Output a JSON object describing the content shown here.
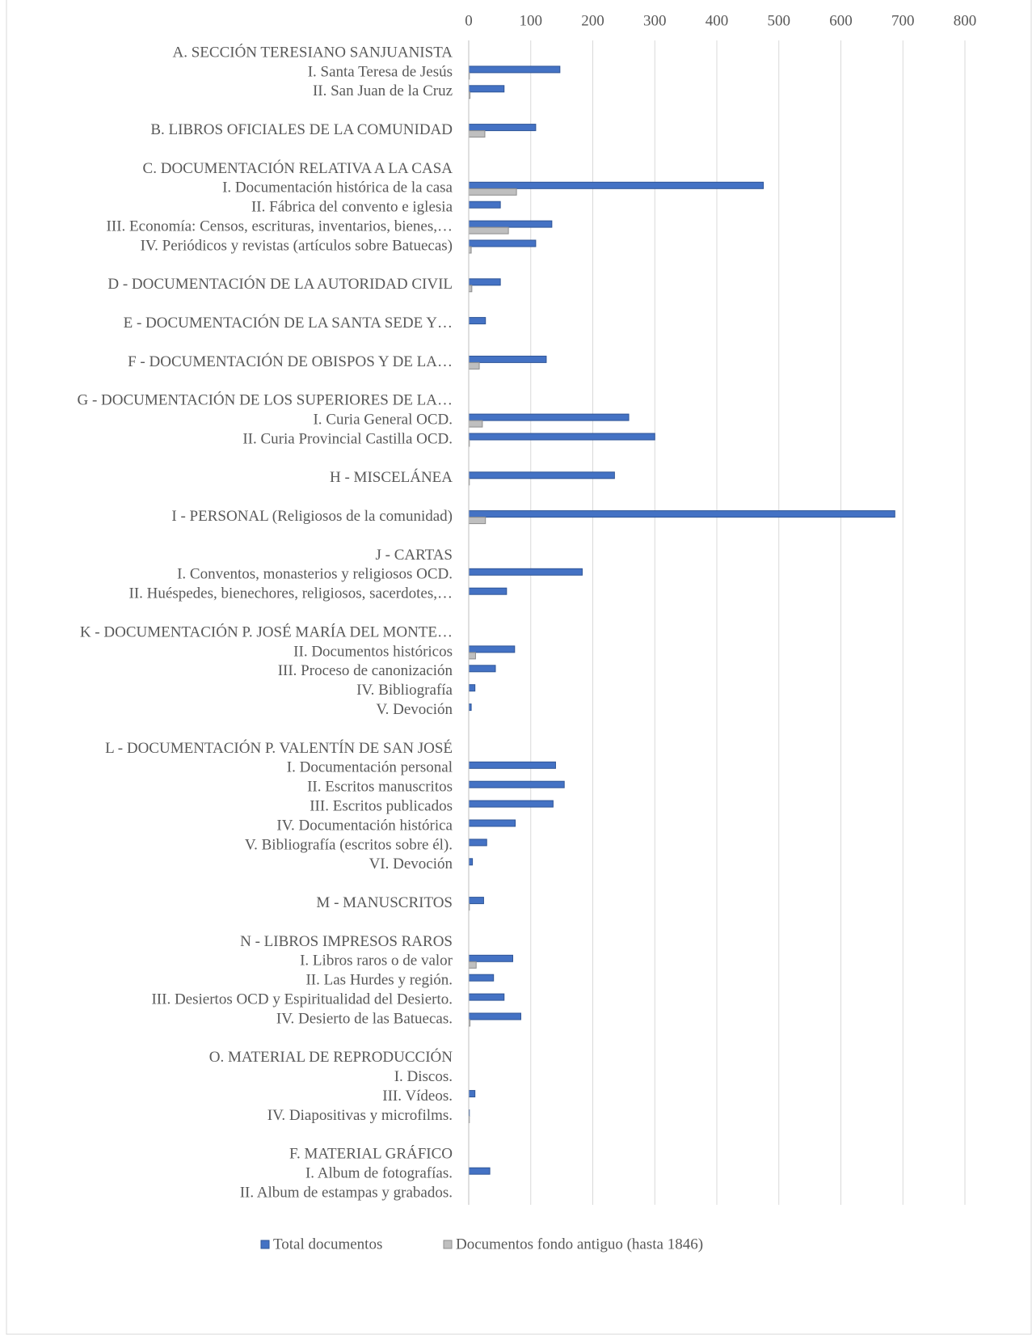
{
  "chart_data": {
    "type": "barh",
    "categories": [
      "A. SECCIÓN TERESIANO SANJUANISTA",
      "I. Santa Teresa de Jesús",
      "II. San Juan de la Cruz",
      null,
      "B. LIBROS OFICIALES DE LA COMUNIDAD",
      null,
      "C. DOCUMENTACIÓN RELATIVA A LA CASA",
      "I. Documentación histórica de la casa",
      "II. Fábrica del convento e iglesia",
      "III. Economía: Censos, escrituras, inventarios, bienes,…",
      "IV. Periódicos y revistas (artículos sobre Batuecas)",
      null,
      "D - DOCUMENTACIÓN DE LA AUTORIDAD CIVIL",
      null,
      "E - DOCUMENTACIÓN DE LA SANTA SEDE Y…",
      null,
      "F - DOCUMENTACIÓN DE OBISPOS Y DE LA…",
      null,
      "G - DOCUMENTACIÓN DE LOS SUPERIORES DE LA…",
      "I. Curia General OCD.",
      "II. Curia Provincial Castilla OCD.",
      null,
      "H - MISCELÁNEA",
      null,
      "I - PERSONAL (Religiosos de la comunidad)",
      null,
      "J - CARTAS",
      "I. Conventos, monasterios y religiosos OCD.",
      "II. Huéspedes, bienechores, religiosos, sacerdotes,…",
      null,
      "K - DOCUMENTACIÓN P. JOSÉ MARÍA DEL MONTE…",
      "II. Documentos históricos",
      "III. Proceso de canonización",
      "IV. Bibliografía",
      "V. Devoción",
      null,
      "L - DOCUMENTACIÓN P. VALENTÍN DE SAN JOSÉ",
      "I. Documentación personal",
      "II. Escritos manuscritos",
      "III. Escritos publicados",
      "IV. Documentación histórica",
      "V. Bibliografía (escritos sobre él).",
      "VI. Devoción",
      null,
      "M - MANUSCRITOS",
      null,
      "N - LIBROS IMPRESOS RAROS",
      "I. Libros raros o de valor",
      "II. Las Hurdes y región.",
      "III. Desiertos OCD y Espiritualidad del Desierto.",
      "IV. Desierto de las Batuecas.",
      null,
      "O. MATERIAL DE REPRODUCCIÓN",
      "I. Discos.",
      "III. Vídeos.",
      "IV. Diapositivas y microfilms.",
      null,
      "F. MATERIAL GRÁFICO",
      "I. Album de fotografías.",
      "II. Album de estampas y grabados."
    ],
    "series": [
      {
        "name": "Total documentos",
        "color": "#4472c4",
        "values": [
          null,
          147,
          57,
          null,
          108,
          null,
          null,
          475,
          51,
          134,
          108,
          null,
          51,
          null,
          27,
          null,
          125,
          null,
          null,
          258,
          300,
          null,
          235,
          null,
          687,
          null,
          null,
          183,
          61,
          null,
          null,
          74,
          43,
          10,
          4,
          null,
          null,
          140,
          154,
          136,
          75,
          29,
          6,
          null,
          24,
          null,
          null,
          71,
          40,
          57,
          84,
          null,
          null,
          0,
          10,
          1,
          null,
          null,
          34,
          0
        ]
      },
      {
        "name": "Documentos fondo antiguo (hasta 1846)",
        "color": "#bfbfbf",
        "values": [
          null,
          1,
          2,
          null,
          26,
          null,
          null,
          77,
          0,
          64,
          4,
          null,
          5,
          null,
          0,
          null,
          17,
          null,
          null,
          22,
          1,
          null,
          1,
          null,
          27,
          null,
          null,
          0,
          0,
          null,
          null,
          11,
          0,
          0,
          0,
          null,
          null,
          0,
          0,
          0,
          0,
          0,
          0,
          null,
          1,
          null,
          null,
          12,
          0,
          0,
          2,
          null,
          null,
          0,
          0,
          1,
          null,
          null,
          0,
          0
        ]
      }
    ],
    "xlim": [
      0,
      800
    ],
    "xticks": [
      0,
      100,
      200,
      300,
      400,
      500,
      600,
      700,
      800
    ],
    "grid": true,
    "legend": "bottom"
  }
}
